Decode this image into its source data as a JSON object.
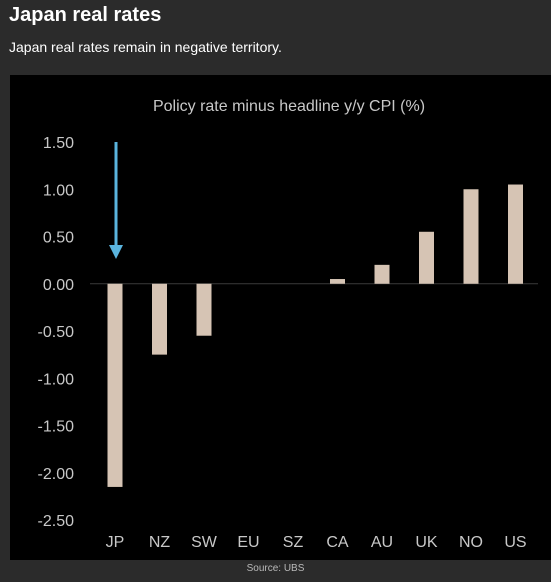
{
  "header": {
    "title": "Japan real rates",
    "subtitle": "Japan real rates remain in negative territory."
  },
  "footer": {
    "source": "Source: UBS"
  },
  "colors": {
    "background": "#2b2b2b",
    "panel": "#000000",
    "bar": "#d6c4b4",
    "arrow": "#5ab4de",
    "text": "#ffffff",
    "axis_text": "#c8c8c8"
  },
  "chart_data": {
    "type": "bar",
    "title": "Policy rate minus headline y/y CPI (%)",
    "xlabel": "",
    "ylabel": "",
    "categories": [
      "JP",
      "NZ",
      "SW",
      "EU",
      "SZ",
      "CA",
      "AU",
      "UK",
      "NO",
      "US"
    ],
    "values": [
      -2.15,
      -0.75,
      -0.55,
      0.0,
      0.0,
      0.05,
      0.2,
      0.55,
      1.0,
      1.05
    ],
    "ylim": [
      -2.5,
      1.5
    ],
    "yticks": [
      "1.50",
      "1.00",
      "0.50",
      "0.00",
      "-0.50",
      "-1.00",
      "-1.50",
      "-2.00",
      "-2.50"
    ],
    "ytick_values": [
      1.5,
      1.0,
      0.5,
      0.0,
      -0.5,
      -1.0,
      -1.5,
      -2.0,
      -2.5
    ],
    "grid": false,
    "legend": "none",
    "annotation": {
      "type": "arrow",
      "target_category": "JP",
      "color": "#5ab4de"
    }
  }
}
